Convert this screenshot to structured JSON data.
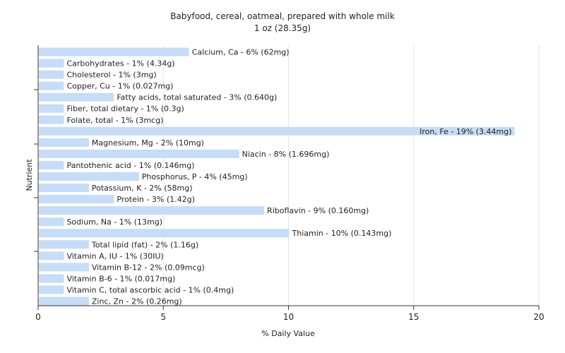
{
  "chart_data": {
    "type": "bar",
    "orientation": "horizontal",
    "title": "Babyfood, cereal, oatmeal, prepared with whole milk",
    "subtitle": "1 oz (28.35g)",
    "xlabel": "% Daily Value",
    "ylabel": "Nutrient",
    "xlim": [
      0,
      20
    ],
    "xticks": [
      "0",
      "5",
      "10",
      "15",
      "20"
    ],
    "grid": true,
    "bar_color": "#c6dcf7",
    "categories": [
      "Calcium, Ca - 6% (62mg)",
      "Carbohydrates - 1% (4.34g)",
      "Cholesterol - 1% (3mg)",
      "Copper, Cu - 1% (0.027mg)",
      "Fatty acids, total saturated - 3% (0.640g)",
      "Fiber, total dietary - 1% (0.3g)",
      "Folate, total - 1% (3mcg)",
      "Iron, Fe - 19% (3.44mg)",
      "Magnesium, Mg - 2% (10mg)",
      "Niacin - 8% (1.696mg)",
      "Pantothenic acid - 1% (0.146mg)",
      "Phosphorus, P - 4% (45mg)",
      "Potassium, K - 2% (58mg)",
      "Protein - 3% (1.42g)",
      "Riboflavin - 9% (0.160mg)",
      "Sodium, Na - 1% (13mg)",
      "Thiamin - 10% (0.143mg)",
      "Total lipid (fat) - 2% (1.16g)",
      "Vitamin A, IU - 1% (30IU)",
      "Vitamin B-12 - 2% (0.09mcg)",
      "Vitamin B-6 - 1% (0.017mg)",
      "Vitamin C, total ascorbic acid - 1% (0.4mg)",
      "Zinc, Zn - 2% (0.26mg)"
    ],
    "values": [
      6,
      1,
      1,
      1,
      3,
      1,
      1,
      19,
      2,
      8,
      1,
      4,
      2,
      3,
      9,
      1,
      10,
      2,
      1,
      2,
      1,
      1,
      2
    ]
  }
}
